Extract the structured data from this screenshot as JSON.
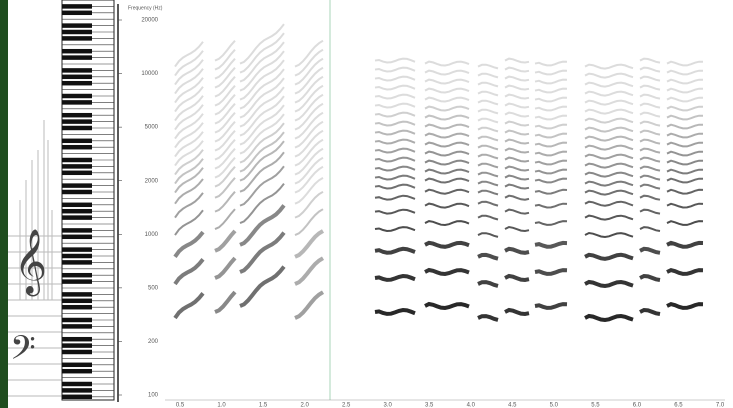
{
  "axis": {
    "title": "Frequency (Hz)",
    "ticks": [
      "20000",
      "10000",
      "5000",
      "2000",
      "1000",
      "500",
      "200",
      "100"
    ],
    "time_ticks": [
      "0.5",
      "1.0",
      "1.5",
      "2.0",
      "2.5",
      "3.0",
      "3.5",
      "4.0",
      "4.5",
      "5.0",
      "5.5",
      "6.0",
      "6.5",
      "7.0"
    ]
  }
}
